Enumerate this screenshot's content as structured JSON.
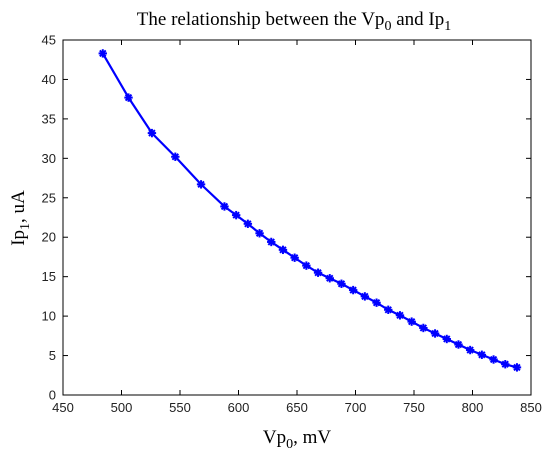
{
  "chart_data": {
    "type": "line",
    "title_parts": {
      "prefix": "The relationship between the Vp",
      "sub1": "0",
      "middle": " and Ip",
      "sub2": "1"
    },
    "xlabel_parts": {
      "main": "Vp",
      "sub": "0",
      "rest": ", mV"
    },
    "ylabel_parts": {
      "main": "Ip",
      "sub": "1",
      "rest": ", uA"
    },
    "xlim": [
      450,
      850
    ],
    "ylim": [
      0,
      45
    ],
    "x_ticks": [
      "450",
      "500",
      "550",
      "600",
      "650",
      "700",
      "750",
      "800",
      "850"
    ],
    "y_ticks": [
      "0",
      "5",
      "10",
      "15",
      "20",
      "25",
      "30",
      "35",
      "40",
      "45"
    ],
    "grid": false,
    "color": "#0000ff",
    "marker": "asterisk",
    "series": [
      {
        "x": [
          484,
          506,
          526,
          546,
          568,
          588,
          598,
          608,
          618,
          628,
          638,
          648,
          658,
          668,
          678,
          688,
          698,
          708,
          718,
          728,
          738,
          748,
          758,
          768,
          778,
          788,
          798,
          808,
          818,
          828,
          838
        ],
        "values": [
          43.3,
          37.7,
          33.2,
          30.2,
          26.7,
          23.9,
          22.8,
          21.7,
          20.5,
          19.4,
          18.4,
          17.4,
          16.4,
          15.5,
          14.8,
          14.1,
          13.3,
          12.5,
          11.7,
          10.8,
          10.1,
          9.3,
          8.5,
          7.8,
          7.1,
          6.4,
          5.7,
          5.1,
          4.5,
          3.9,
          3.5
        ]
      }
    ]
  }
}
